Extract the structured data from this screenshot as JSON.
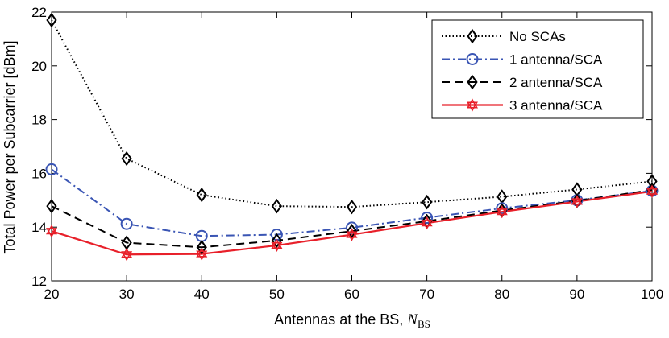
{
  "chart_data": {
    "type": "line",
    "title": "",
    "xlabel": "Antennas at the BS, ",
    "xlabel_var": "N",
    "xlabel_sub": "BS",
    "ylabel": "Total Power per Subcarrier [dBm]",
    "xlim": [
      20,
      100
    ],
    "ylim": [
      12,
      22
    ],
    "xticks": [
      "20",
      "30",
      "40",
      "50",
      "60",
      "70",
      "80",
      "90",
      "100"
    ],
    "yticks": [
      "12",
      "14",
      "16",
      "18",
      "20",
      "22"
    ],
    "grid": false,
    "legend_position": "top-right",
    "x": [
      20,
      30,
      40,
      50,
      60,
      70,
      80,
      90,
      100
    ],
    "series": [
      {
        "name": "No SCAs",
        "values": [
          21.7,
          16.55,
          15.2,
          14.78,
          14.75,
          14.93,
          15.13,
          15.4,
          15.7
        ],
        "color": "#000000",
        "dash": "dotted",
        "marker": "diamond"
      },
      {
        "name": "1 antenna/SCA",
        "values": [
          16.15,
          14.12,
          13.67,
          13.72,
          13.98,
          14.35,
          14.7,
          15.0,
          15.35
        ],
        "color": "#3a55b4",
        "dash": "dashdot",
        "marker": "circle"
      },
      {
        "name": "2 antenna/SCA",
        "values": [
          14.78,
          13.42,
          13.25,
          13.5,
          13.85,
          14.22,
          14.62,
          14.98,
          15.38
        ],
        "color": "#000000",
        "dash": "dashed",
        "marker": "diamond"
      },
      {
        "name": "3 antenna/SCA",
        "values": [
          13.85,
          12.98,
          13.0,
          13.32,
          13.72,
          14.15,
          14.57,
          14.95,
          15.33
        ],
        "color": "#e8202a",
        "dash": "solid",
        "marker": "hexagram"
      }
    ]
  }
}
